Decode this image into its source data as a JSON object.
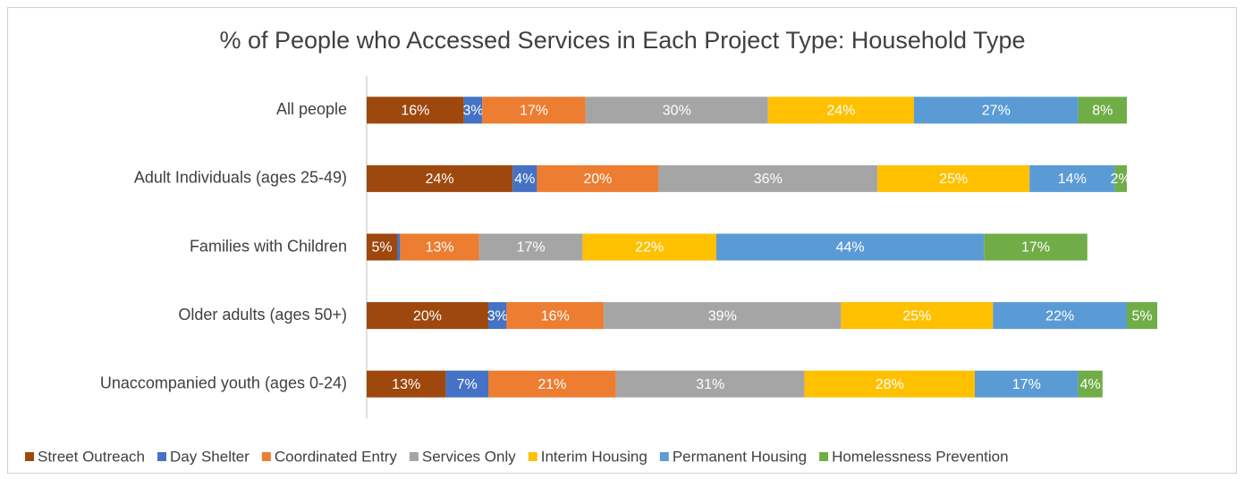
{
  "chart_data": {
    "type": "stacked-bar-horizontal",
    "title": "% of People who Accessed Services in Each Project Type: Household Type",
    "categories": [
      "All people",
      "Adult Individuals (ages 25-49)",
      "Families with Children",
      "Older adults (ages 50+)",
      "Unaccompanied youth (ages 0-24)"
    ],
    "series": [
      {
        "name": "Street Outreach",
        "color": "#9e480e",
        "values": [
          16,
          24,
          5,
          20,
          13
        ],
        "value_labels": [
          "16%",
          "24%",
          "5%",
          "20%",
          "13%"
        ]
      },
      {
        "name": "Day Shelter",
        "color": "#4472c4",
        "values": [
          3,
          4,
          0.5,
          3,
          7
        ],
        "value_labels": [
          "3%",
          "4%",
          null,
          "3%",
          "7%"
        ]
      },
      {
        "name": "Coordinated Entry",
        "color": "#ed7d31",
        "values": [
          17,
          20,
          13,
          16,
          21
        ],
        "value_labels": [
          "17%",
          "20%",
          "13%",
          "16%",
          "21%"
        ]
      },
      {
        "name": "Services Only",
        "color": "#a5a5a5",
        "values": [
          30,
          36,
          17,
          39,
          31
        ],
        "value_labels": [
          "30%",
          "36%",
          "17%",
          "39%",
          "31%"
        ]
      },
      {
        "name": "Interim Housing",
        "color": "#ffc000",
        "values": [
          24,
          25,
          22,
          25,
          28
        ],
        "value_labels": [
          "24%",
          "25%",
          "22%",
          "25%",
          "28%"
        ]
      },
      {
        "name": "Permanent Housing",
        "color": "#5b9bd5",
        "values": [
          27,
          14,
          44,
          22,
          17
        ],
        "value_labels": [
          "27%",
          "14%",
          "44%",
          "22%",
          "17%"
        ]
      },
      {
        "name": "Homelessness Prevention",
        "color": "#70ad47",
        "values": [
          8,
          2,
          17,
          5,
          4
        ],
        "value_labels": [
          "8%",
          "2%",
          "17%",
          "5%",
          "4%"
        ]
      }
    ],
    "legend": "bottom"
  }
}
